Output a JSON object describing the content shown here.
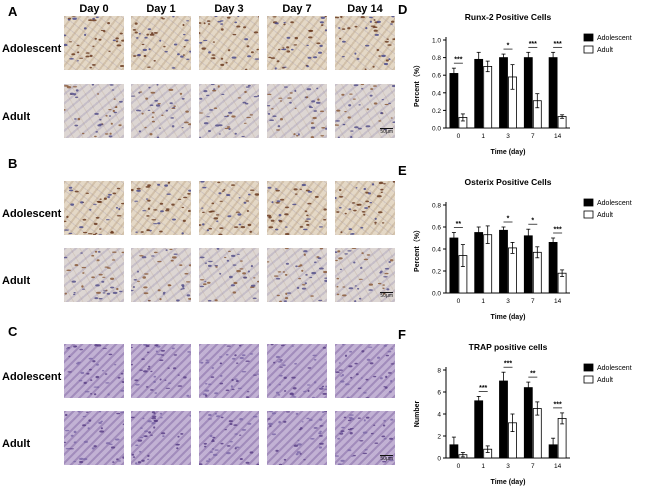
{
  "image_panels": {
    "days": [
      "Day 0",
      "Day 1",
      "Day 3",
      "Day 7",
      "Day 14"
    ],
    "groups": [
      {
        "letter": "A",
        "rows": [
          "Adolescent",
          "Adult"
        ]
      },
      {
        "letter": "B",
        "rows": [
          "Adolescent",
          "Adult"
        ]
      },
      {
        "letter": "C",
        "rows": [
          "Adolescent",
          "Adult"
        ]
      }
    ],
    "scale_bar": "50μm"
  },
  "chart_data": [
    {
      "letter": "D",
      "type": "bar",
      "title": "Runx-2 Positive Cells",
      "xlabel": "Time (day)",
      "ylabel": "Percent（%）",
      "categories": [
        "0",
        "1",
        "3",
        "7",
        "14"
      ],
      "ylim": [
        0,
        1.0
      ],
      "yticks": [
        "0.0",
        "0.2",
        "0.4",
        "0.6",
        "0.8",
        "1.0"
      ],
      "legend": "top-right",
      "series": [
        {
          "name": "Adolescent",
          "color": "#000000",
          "values": [
            0.62,
            0.78,
            0.8,
            0.8,
            0.8
          ],
          "errors": [
            0.06,
            0.08,
            0.04,
            0.06,
            0.06
          ]
        },
        {
          "name": "Adult",
          "color": "#ffffff",
          "values": [
            0.12,
            0.7,
            0.58,
            0.31,
            0.13
          ],
          "errors": [
            0.04,
            0.06,
            0.14,
            0.08,
            0.02
          ]
        }
      ],
      "significance": [
        "***",
        "",
        "*",
        "***",
        "***"
      ]
    },
    {
      "letter": "E",
      "type": "bar",
      "title": "Osterix Positive Cells",
      "xlabel": "Time (day)",
      "ylabel": "Percent（%）",
      "categories": [
        "0",
        "1",
        "3",
        "7",
        "14"
      ],
      "ylim": [
        0,
        0.8
      ],
      "yticks": [
        "0.0",
        "0.2",
        "0.4",
        "0.6",
        "0.8"
      ],
      "legend": "top-right",
      "series": [
        {
          "name": "Adolescent",
          "color": "#000000",
          "values": [
            0.5,
            0.55,
            0.57,
            0.52,
            0.46
          ],
          "errors": [
            0.05,
            0.05,
            0.03,
            0.06,
            0.04
          ]
        },
        {
          "name": "Adult",
          "color": "#ffffff",
          "values": [
            0.34,
            0.53,
            0.41,
            0.37,
            0.18
          ],
          "errors": [
            0.1,
            0.08,
            0.05,
            0.05,
            0.03
          ]
        }
      ],
      "significance": [
        "**",
        "",
        "*",
        "*",
        "***"
      ]
    },
    {
      "letter": "F",
      "type": "bar",
      "title": "TRAP positive cells",
      "xlabel": "Time (day)",
      "ylabel": "Number",
      "categories": [
        "0",
        "1",
        "3",
        "7",
        "14"
      ],
      "ylim": [
        0,
        8
      ],
      "yticks": [
        "0",
        "2",
        "4",
        "6",
        "8"
      ],
      "legend": "top-right",
      "series": [
        {
          "name": "Adolescent",
          "color": "#000000",
          "values": [
            1.2,
            5.2,
            7.0,
            6.4,
            1.2
          ],
          "errors": [
            0.7,
            0.4,
            0.8,
            0.5,
            0.6
          ]
        },
        {
          "name": "Adult",
          "color": "#ffffff",
          "values": [
            0.3,
            0.8,
            3.2,
            4.5,
            3.6
          ],
          "errors": [
            0.2,
            0.3,
            0.8,
            0.6,
            0.5
          ]
        }
      ],
      "significance": [
        "",
        "***",
        "***",
        "**",
        "***"
      ]
    }
  ]
}
